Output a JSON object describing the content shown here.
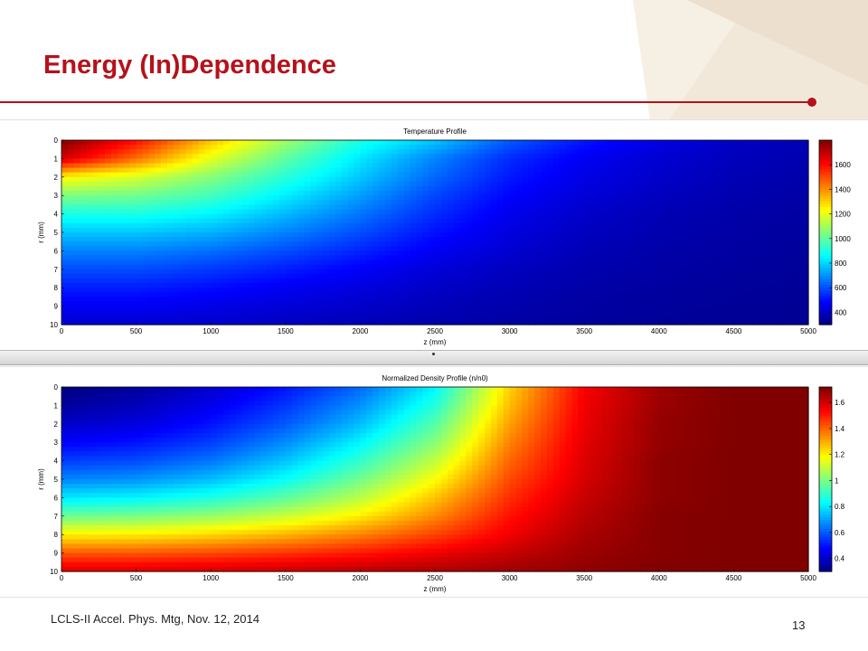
{
  "slide": {
    "title": "Energy (In)Dependence",
    "footer": "LCLS-II Accel. Phys. Mtg, Nov. 12, 2014",
    "page_number": "13",
    "accent_color": "#b5121b"
  },
  "chart_data": [
    {
      "type": "heatmap",
      "title": "Temperature Profile",
      "xlabel": "z (mm)",
      "ylabel": "r (mm)",
      "xlim": [
        0,
        5000
      ],
      "ylim": [
        0,
        10
      ],
      "xticks": [
        0,
        500,
        1000,
        1500,
        2000,
        2500,
        3000,
        3500,
        4000,
        4500,
        5000
      ],
      "yticks": [
        0,
        1,
        2,
        3,
        4,
        5,
        6,
        7,
        8,
        9,
        10
      ],
      "y_inverted": true,
      "colormap": "jet",
      "clim": [
        300,
        1800
      ],
      "colorbar_ticks": [
        400,
        600,
        800,
        1000,
        1200,
        1400,
        1600
      ],
      "z_values": [
        0,
        500,
        1000,
        1500,
        2000,
        2500,
        3000,
        3500,
        4000,
        4500,
        5000
      ],
      "r_values": [
        0,
        1,
        2,
        3,
        4,
        5,
        6,
        7,
        8,
        9,
        10
      ],
      "values": [
        [
          1800,
          1600,
          1330,
          1100,
          900,
          780,
          620,
          520,
          450,
          400,
          380
        ],
        [
          1680,
          1450,
          1200,
          1000,
          830,
          680,
          550,
          470,
          420,
          390,
          370
        ],
        [
          1250,
          1180,
          1060,
          920,
          780,
          640,
          520,
          450,
          410,
          380,
          360
        ],
        [
          1050,
          1030,
          960,
          840,
          720,
          590,
          490,
          430,
          395,
          370,
          355
        ],
        [
          900,
          900,
          850,
          760,
          660,
          550,
          460,
          410,
          380,
          360,
          350
        ],
        [
          780,
          780,
          750,
          680,
          600,
          510,
          440,
          395,
          370,
          355,
          345
        ],
        [
          680,
          680,
          650,
          600,
          540,
          470,
          420,
          380,
          360,
          350,
          340
        ],
        [
          600,
          600,
          570,
          530,
          480,
          430,
          395,
          370,
          355,
          345,
          338
        ],
        [
          530,
          530,
          505,
          470,
          440,
          405,
          380,
          360,
          348,
          340,
          335
        ],
        [
          470,
          470,
          450,
          430,
          410,
          385,
          365,
          350,
          342,
          336,
          332
        ],
        [
          420,
          420,
          410,
          395,
          380,
          365,
          352,
          342,
          336,
          332,
          330
        ]
      ]
    },
    {
      "type": "heatmap",
      "title": "Normalized Density Profile (n/n0)",
      "xlabel": "z (mm)",
      "ylabel": "r (mm)",
      "xlim": [
        0,
        5000
      ],
      "ylim": [
        0,
        10
      ],
      "xticks": [
        0,
        500,
        1000,
        1500,
        2000,
        2500,
        3000,
        3500,
        4000,
        4500,
        5000
      ],
      "yticks": [
        0,
        1,
        2,
        3,
        4,
        5,
        6,
        7,
        8,
        9,
        10
      ],
      "y_inverted": true,
      "colormap": "jet",
      "clim": [
        0.3,
        1.72
      ],
      "colorbar_ticks": [
        0.4,
        0.6,
        0.8,
        1,
        1.2,
        1.4,
        1.6
      ],
      "z_values": [
        0,
        500,
        1000,
        1500,
        2000,
        2500,
        3000,
        3500,
        4000,
        4500,
        5000
      ],
      "r_values": [
        0,
        1,
        2,
        3,
        4,
        5,
        6,
        7,
        8,
        9,
        10
      ],
      "values": [
        [
          0.3,
          0.34,
          0.41,
          0.5,
          0.62,
          0.82,
          1.25,
          1.55,
          1.68,
          1.72,
          1.72
        ],
        [
          0.34,
          0.38,
          0.45,
          0.55,
          0.68,
          0.88,
          1.28,
          1.56,
          1.68,
          1.72,
          1.72
        ],
        [
          0.4,
          0.43,
          0.5,
          0.6,
          0.74,
          0.95,
          1.32,
          1.57,
          1.69,
          1.72,
          1.72
        ],
        [
          0.47,
          0.5,
          0.56,
          0.67,
          0.82,
          1.02,
          1.36,
          1.58,
          1.69,
          1.72,
          1.72
        ],
        [
          0.56,
          0.58,
          0.64,
          0.75,
          0.9,
          1.1,
          1.4,
          1.59,
          1.7,
          1.72,
          1.72
        ],
        [
          0.66,
          0.68,
          0.74,
          0.84,
          0.99,
          1.18,
          1.44,
          1.6,
          1.7,
          1.72,
          1.72
        ],
        [
          0.8,
          0.82,
          0.87,
          0.96,
          1.09,
          1.27,
          1.48,
          1.62,
          1.7,
          1.72,
          1.72
        ],
        [
          0.98,
          1.0,
          1.04,
          1.11,
          1.21,
          1.35,
          1.52,
          1.64,
          1.71,
          1.72,
          1.72
        ],
        [
          1.2,
          1.21,
          1.24,
          1.29,
          1.36,
          1.45,
          1.56,
          1.66,
          1.71,
          1.72,
          1.72
        ],
        [
          1.42,
          1.42,
          1.44,
          1.47,
          1.51,
          1.56,
          1.62,
          1.68,
          1.71,
          1.72,
          1.72
        ],
        [
          1.6,
          1.6,
          1.61,
          1.62,
          1.64,
          1.66,
          1.68,
          1.7,
          1.72,
          1.72,
          1.72
        ]
      ]
    }
  ]
}
